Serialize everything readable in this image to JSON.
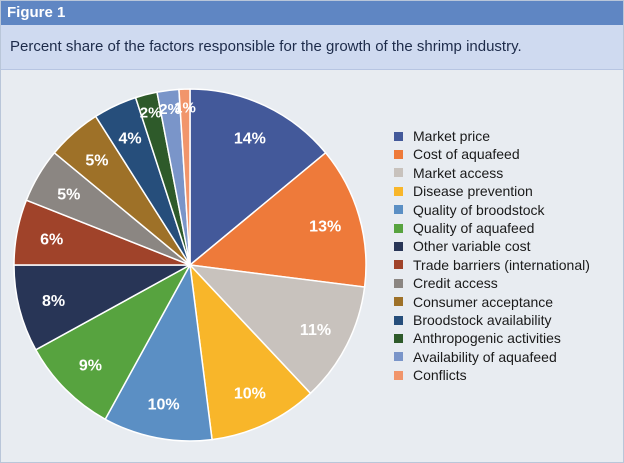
{
  "figure_label": "Figure 1",
  "title": "Percent share of the factors responsible for the growth of the shrimp industry.",
  "chart_data": {
    "type": "pie",
    "title": "Percent share of the factors responsible for the growth of the shrimp industry.",
    "unit": "%",
    "legend_position": "right",
    "slices": [
      {
        "label": "Market price",
        "value": 14,
        "display": "14%",
        "color": "#43599a"
      },
      {
        "label": "Cost of aquafeed",
        "value": 13,
        "display": "13%",
        "color": "#ee7a3a"
      },
      {
        "label": "Market access",
        "value": 11,
        "display": "11%",
        "color": "#c8c2bd"
      },
      {
        "label": "Disease prevention",
        "value": 10,
        "display": "10%",
        "color": "#f8b62a"
      },
      {
        "label": "Quality of broodstock",
        "value": 10,
        "display": "10%",
        "color": "#5b8fc4"
      },
      {
        "label": "Quality of aquafeed",
        "value": 9,
        "display": "9%",
        "color": "#57a33f"
      },
      {
        "label": "Other variable cost",
        "value": 8,
        "display": "8%",
        "color": "#283556"
      },
      {
        "label": "Trade barriers (international)",
        "value": 6,
        "display": "6%",
        "color": "#a0432a"
      },
      {
        "label": "Credit access",
        "value": 5,
        "display": "5%",
        "color": "#8b8682"
      },
      {
        "label": "Consumer acceptance",
        "value": 5,
        "display": "5%",
        "color": "#9e7128"
      },
      {
        "label": "Broodstock availability",
        "value": 4,
        "display": "4%",
        "color": "#264e7b"
      },
      {
        "label": "Anthropogenic activities",
        "value": 2,
        "display": "2%",
        "color": "#2e5a2a"
      },
      {
        "label": "Availability of aquafeed",
        "value": 2,
        "display": "2%",
        "color": "#7a95c9"
      },
      {
        "label": "Conflicts",
        "value": 1,
        "display": "1%",
        "color": "#f1956b"
      }
    ]
  }
}
